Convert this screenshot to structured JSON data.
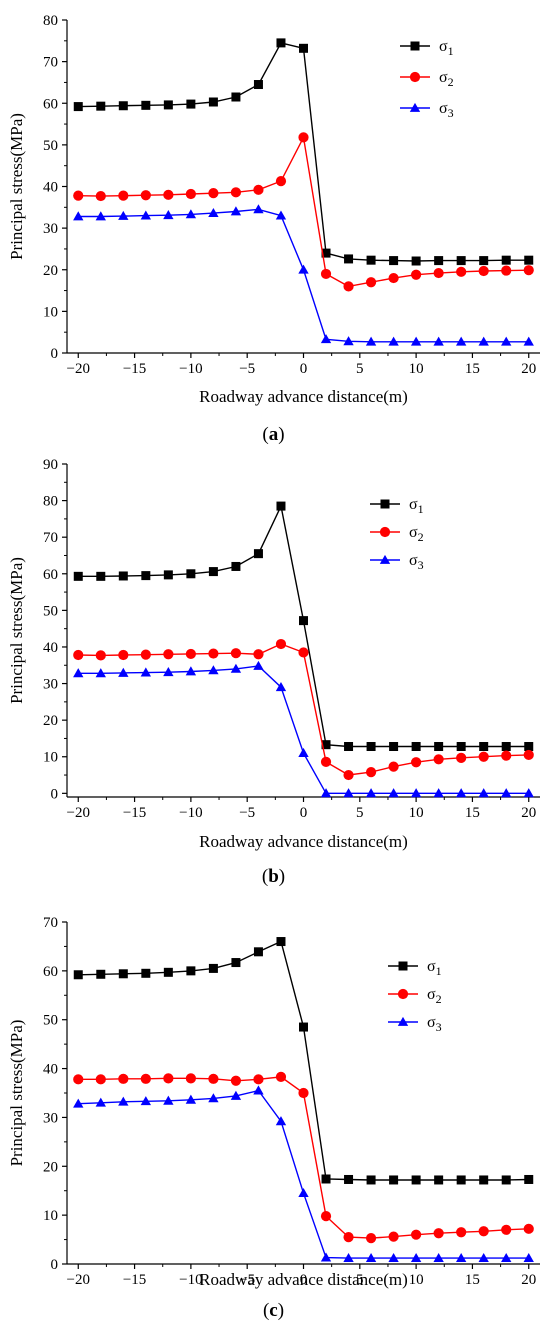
{
  "chart_data": [
    {
      "type": "line",
      "panel_label": "a",
      "xlabel": "Roadway advance distance(m)",
      "ylabel": "Principal stress(MPa)",
      "xlim": [
        -21,
        21
      ],
      "ylim": [
        0,
        80
      ],
      "xticks": [
        -20,
        -15,
        -10,
        -5,
        0,
        5,
        10,
        15,
        20
      ],
      "yticks": [
        0,
        10,
        20,
        30,
        40,
        50,
        60,
        70,
        80
      ],
      "legend_position": "top-right",
      "x": [
        -20,
        -18,
        -16,
        -14,
        -12,
        -10,
        -8,
        -6,
        -4,
        -2,
        0,
        2,
        4,
        6,
        8,
        10,
        12,
        14,
        16,
        18,
        20
      ],
      "series": [
        {
          "name": "σ",
          "subscript": "1",
          "color": "#000000",
          "marker": "square",
          "values": [
            59.2,
            59.3,
            59.4,
            59.5,
            59.6,
            59.8,
            60.3,
            61.5,
            64.5,
            74.5,
            73.2,
            24.0,
            22.6,
            22.3,
            22.2,
            22.1,
            22.2,
            22.2,
            22.2,
            22.3,
            22.3
          ]
        },
        {
          "name": "σ",
          "subscript": "2",
          "color": "#ff0000",
          "marker": "circle",
          "values": [
            37.8,
            37.7,
            37.8,
            37.9,
            38.0,
            38.2,
            38.4,
            38.6,
            39.2,
            41.3,
            51.8,
            19.0,
            16.0,
            17.0,
            18.0,
            18.8,
            19.2,
            19.5,
            19.7,
            19.8,
            19.9
          ]
        },
        {
          "name": "σ",
          "subscript": "3",
          "color": "#0000ff",
          "marker": "triangle",
          "values": [
            32.8,
            32.8,
            32.9,
            33.0,
            33.1,
            33.3,
            33.6,
            34.0,
            34.5,
            33.0,
            20.0,
            3.3,
            2.8,
            2.7,
            2.7,
            2.7,
            2.7,
            2.7,
            2.7,
            2.7,
            2.7
          ]
        }
      ]
    },
    {
      "type": "line",
      "panel_label": "b",
      "xlabel": "Roadway advance distance(m)",
      "ylabel": "Principal stress(MPa)",
      "xlim": [
        -21,
        21
      ],
      "ylim": [
        -1,
        90
      ],
      "xticks": [
        -20,
        -15,
        -10,
        -5,
        0,
        5,
        10,
        15,
        20
      ],
      "yticks": [
        0,
        10,
        20,
        30,
        40,
        50,
        60,
        70,
        80,
        90
      ],
      "legend_position": "top-right",
      "x": [
        -20,
        -18,
        -16,
        -14,
        -12,
        -10,
        -8,
        -6,
        -4,
        -2,
        0,
        2,
        4,
        6,
        8,
        10,
        12,
        14,
        16,
        18,
        20
      ],
      "series": [
        {
          "name": "σ",
          "subscript": "1",
          "color": "#000000",
          "marker": "square",
          "values": [
            59.3,
            59.3,
            59.4,
            59.5,
            59.7,
            60.0,
            60.6,
            62.0,
            65.5,
            78.5,
            47.2,
            13.3,
            12.8,
            12.8,
            12.8,
            12.8,
            12.8,
            12.8,
            12.8,
            12.8,
            12.8
          ]
        },
        {
          "name": "σ",
          "subscript": "2",
          "color": "#ff0000",
          "marker": "circle",
          "values": [
            37.8,
            37.7,
            37.8,
            37.9,
            38.0,
            38.1,
            38.2,
            38.3,
            38.0,
            40.8,
            38.5,
            8.6,
            5.0,
            5.8,
            7.3,
            8.5,
            9.3,
            9.7,
            10.0,
            10.3,
            10.5
          ]
        },
        {
          "name": "σ",
          "subscript": "3",
          "color": "#0000ff",
          "marker": "triangle",
          "values": [
            32.8,
            32.8,
            32.9,
            33.0,
            33.1,
            33.3,
            33.6,
            34.0,
            34.8,
            29.0,
            11.0,
            0.0,
            0.0,
            0.0,
            0.0,
            0.0,
            0.0,
            0.0,
            0.0,
            0.0,
            0.0
          ]
        }
      ]
    },
    {
      "type": "line",
      "panel_label": "c",
      "xlabel": "Roadway advance distance(m)",
      "ylabel": "Principal stress(MPa)",
      "xlim": [
        -21,
        21
      ],
      "ylim": [
        0,
        70
      ],
      "xticks": [
        -20,
        -15,
        -10,
        -5,
        0,
        5,
        10,
        15,
        20
      ],
      "yticks": [
        0,
        10,
        20,
        30,
        40,
        50,
        60,
        70
      ],
      "legend_position": "top-right",
      "x": [
        -20,
        -18,
        -16,
        -14,
        -12,
        -10,
        -8,
        -6,
        -4,
        -2,
        0,
        2,
        4,
        6,
        8,
        10,
        12,
        14,
        16,
        18,
        20
      ],
      "series": [
        {
          "name": "σ",
          "subscript": "1",
          "color": "#000000",
          "marker": "square",
          "values": [
            59.2,
            59.3,
            59.4,
            59.5,
            59.7,
            60.0,
            60.5,
            61.7,
            63.9,
            66.0,
            48.5,
            17.4,
            17.3,
            17.2,
            17.2,
            17.2,
            17.2,
            17.2,
            17.2,
            17.2,
            17.3
          ]
        },
        {
          "name": "σ",
          "subscript": "2",
          "color": "#ff0000",
          "marker": "circle",
          "values": [
            37.8,
            37.8,
            37.9,
            37.9,
            38.0,
            38.0,
            37.9,
            37.5,
            37.8,
            38.3,
            35.0,
            9.8,
            5.5,
            5.3,
            5.6,
            6.0,
            6.3,
            6.5,
            6.7,
            7.0,
            7.2
          ]
        },
        {
          "name": "σ",
          "subscript": "3",
          "color": "#0000ff",
          "marker": "triangle",
          "values": [
            32.8,
            33.0,
            33.2,
            33.3,
            33.4,
            33.6,
            33.9,
            34.4,
            35.5,
            29.2,
            14.5,
            1.3,
            1.2,
            1.2,
            1.2,
            1.2,
            1.2,
            1.2,
            1.2,
            1.2,
            1.2
          ]
        }
      ]
    }
  ]
}
